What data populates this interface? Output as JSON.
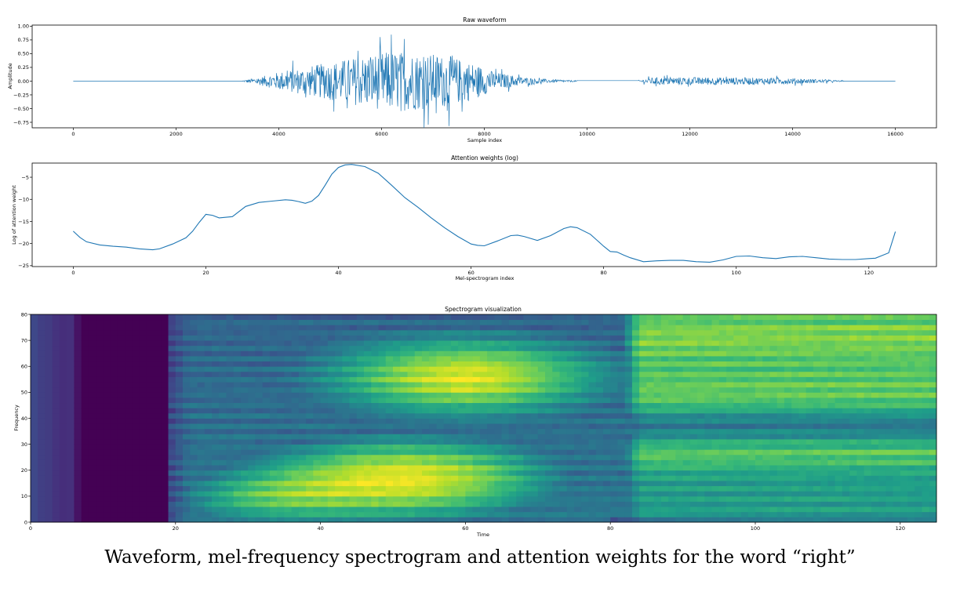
{
  "caption": "Waveform, mel-frequency spectrogram and attention weights for the word “right”",
  "colors": {
    "line": "#1f77b4",
    "viridis": [
      "#440154",
      "#482878",
      "#3e4989",
      "#31688e",
      "#26828e",
      "#1f9e89",
      "#35b779",
      "#6ece58",
      "#b5de2b",
      "#fde725"
    ]
  },
  "chart_data": [
    {
      "type": "line",
      "title": "Raw waveform",
      "xlabel": "Sample index",
      "ylabel": "Amplitude",
      "xlim": [
        -800,
        16800
      ],
      "ylim": [
        -0.85,
        1.02
      ],
      "xticks": [
        0,
        2000,
        4000,
        6000,
        8000,
        10000,
        12000,
        14000,
        16000
      ],
      "xtick_labels": [
        "0",
        "2000",
        "4000",
        "6000",
        "8000",
        "10000",
        "12000",
        "14000",
        "16000"
      ],
      "yticks": [
        1.0,
        0.75,
        0.5,
        0.25,
        0.0,
        -0.25,
        -0.5,
        -0.75
      ],
      "ytick_labels": [
        "1.00",
        "0.75",
        "0.50",
        "0.25",
        "0.00",
        "−0.25",
        "−0.50",
        "−0.75"
      ],
      "segments": [
        {
          "x_start": 0,
          "x_end": 3300,
          "amplitude": 0.0
        },
        {
          "x_start": 3300,
          "x_end": 9800,
          "envelope_x": [
            3300,
            3600,
            4000,
            4600,
            5200,
            5800,
            6200,
            6800,
            7300,
            7800,
            8200,
            8800,
            9300,
            9800
          ],
          "envelope_y": [
            0.02,
            0.12,
            0.3,
            0.5,
            0.7,
            0.9,
            1.0,
            0.95,
            0.85,
            0.6,
            0.3,
            0.12,
            0.05,
            0.02
          ]
        },
        {
          "x_start": 9800,
          "x_end": 11000,
          "amplitude": 0.01
        },
        {
          "x_start": 11000,
          "x_end": 15000,
          "envelope_x": [
            11000,
            11300,
            12000,
            13000,
            14000,
            14600,
            15000
          ],
          "envelope_y": [
            0.03,
            0.12,
            0.13,
            0.12,
            0.1,
            0.05,
            0.01
          ]
        },
        {
          "x_start": 15000,
          "x_end": 16000,
          "amplitude": 0.0
        }
      ]
    },
    {
      "type": "line",
      "title": "Attention weights (log)",
      "xlabel": "Mel-spectrogram index",
      "ylabel": "Log of attention weight",
      "xlim": [
        -6.2,
        130.2
      ],
      "ylim": [
        -25.2,
        -1.8
      ],
      "xticks": [
        0,
        20,
        40,
        60,
        80,
        100,
        120
      ],
      "xtick_labels": [
        "0",
        "20",
        "40",
        "60",
        "80",
        "100",
        "120"
      ],
      "yticks": [
        -5,
        -10,
        -15,
        -20,
        -25
      ],
      "ytick_labels": [
        "−5",
        "−10",
        "−15",
        "−20",
        "−25"
      ],
      "x": [
        0,
        1,
        2,
        4,
        6,
        8,
        10,
        12,
        13,
        15,
        17,
        18,
        19,
        20,
        21,
        22,
        24,
        26,
        28,
        30,
        32,
        33,
        34,
        35,
        36,
        37,
        38,
        39,
        40,
        41,
        42,
        44,
        46,
        48,
        50,
        52,
        54,
        56,
        58,
        60,
        61,
        62,
        64,
        66,
        67,
        68,
        70,
        72,
        74,
        75,
        76,
        78,
        80,
        81,
        82,
        83,
        84,
        86,
        88,
        90,
        92,
        94,
        96,
        98,
        100,
        102,
        104,
        106,
        108,
        110,
        112,
        114,
        116,
        118,
        120,
        121,
        122,
        123,
        124
      ],
      "y": [
        -17.2,
        -18.6,
        -19.6,
        -20.3,
        -20.6,
        -20.8,
        -21.2,
        -21.4,
        -21.2,
        -20.1,
        -18.7,
        -17.2,
        -15.2,
        -13.4,
        -13.6,
        -14.2,
        -13.9,
        -11.6,
        -10.7,
        -10.4,
        -10.1,
        -10.2,
        -10.5,
        -10.9,
        -10.4,
        -9.1,
        -6.8,
        -4.3,
        -2.8,
        -2.2,
        -2.1,
        -2.6,
        -4.1,
        -6.8,
        -9.6,
        -11.8,
        -14.2,
        -16.4,
        -18.4,
        -20.1,
        -20.4,
        -20.5,
        -19.4,
        -18.2,
        -18.1,
        -18.4,
        -19.3,
        -18.2,
        -16.6,
        -16.2,
        -16.4,
        -17.9,
        -20.6,
        -21.8,
        -21.9,
        -22.6,
        -23.2,
        -24.1,
        -23.9,
        -23.8,
        -23.8,
        -24.1,
        -24.2,
        -23.7,
        -22.9,
        -22.8,
        -23.2,
        -23.4,
        -23.0,
        -22.9,
        -23.2,
        -23.5,
        -23.6,
        -23.6,
        -23.4,
        -23.3,
        -22.7,
        -22.1,
        -17.3
      ]
    },
    {
      "type": "heatmap",
      "title": "Spectrogram visualization",
      "xlabel": "Time",
      "ylabel": "Frequency",
      "xlim": [
        0,
        125
      ],
      "ylim": [
        0,
        80
      ],
      "xticks": [
        0,
        20,
        40,
        60,
        80,
        100,
        120
      ],
      "xtick_labels": [
        "0",
        "20",
        "40",
        "60",
        "80",
        "100",
        "120"
      ],
      "yticks": [
        0,
        10,
        20,
        30,
        40,
        50,
        60,
        70,
        80
      ],
      "ytick_labels": [
        "0",
        "10",
        "20",
        "30",
        "40",
        "50",
        "60",
        "70",
        "80"
      ],
      "colormap": "viridis",
      "columns": 125,
      "rows": 40,
      "description_regions": [
        {
          "time": [
            0,
            6
          ],
          "level": 0.15
        },
        {
          "time": [
            7,
            19
          ],
          "level": 0.0
        },
        {
          "time": [
            19,
            40
          ],
          "level_low_freq": 0.6,
          "level_high_freq": 0.25
        },
        {
          "time": [
            40,
            80
          ],
          "level_low_freq": 0.9,
          "level_high_freq": 0.7
        },
        {
          "time": [
            80,
            125
          ],
          "level": 0.55
        }
      ]
    }
  ]
}
